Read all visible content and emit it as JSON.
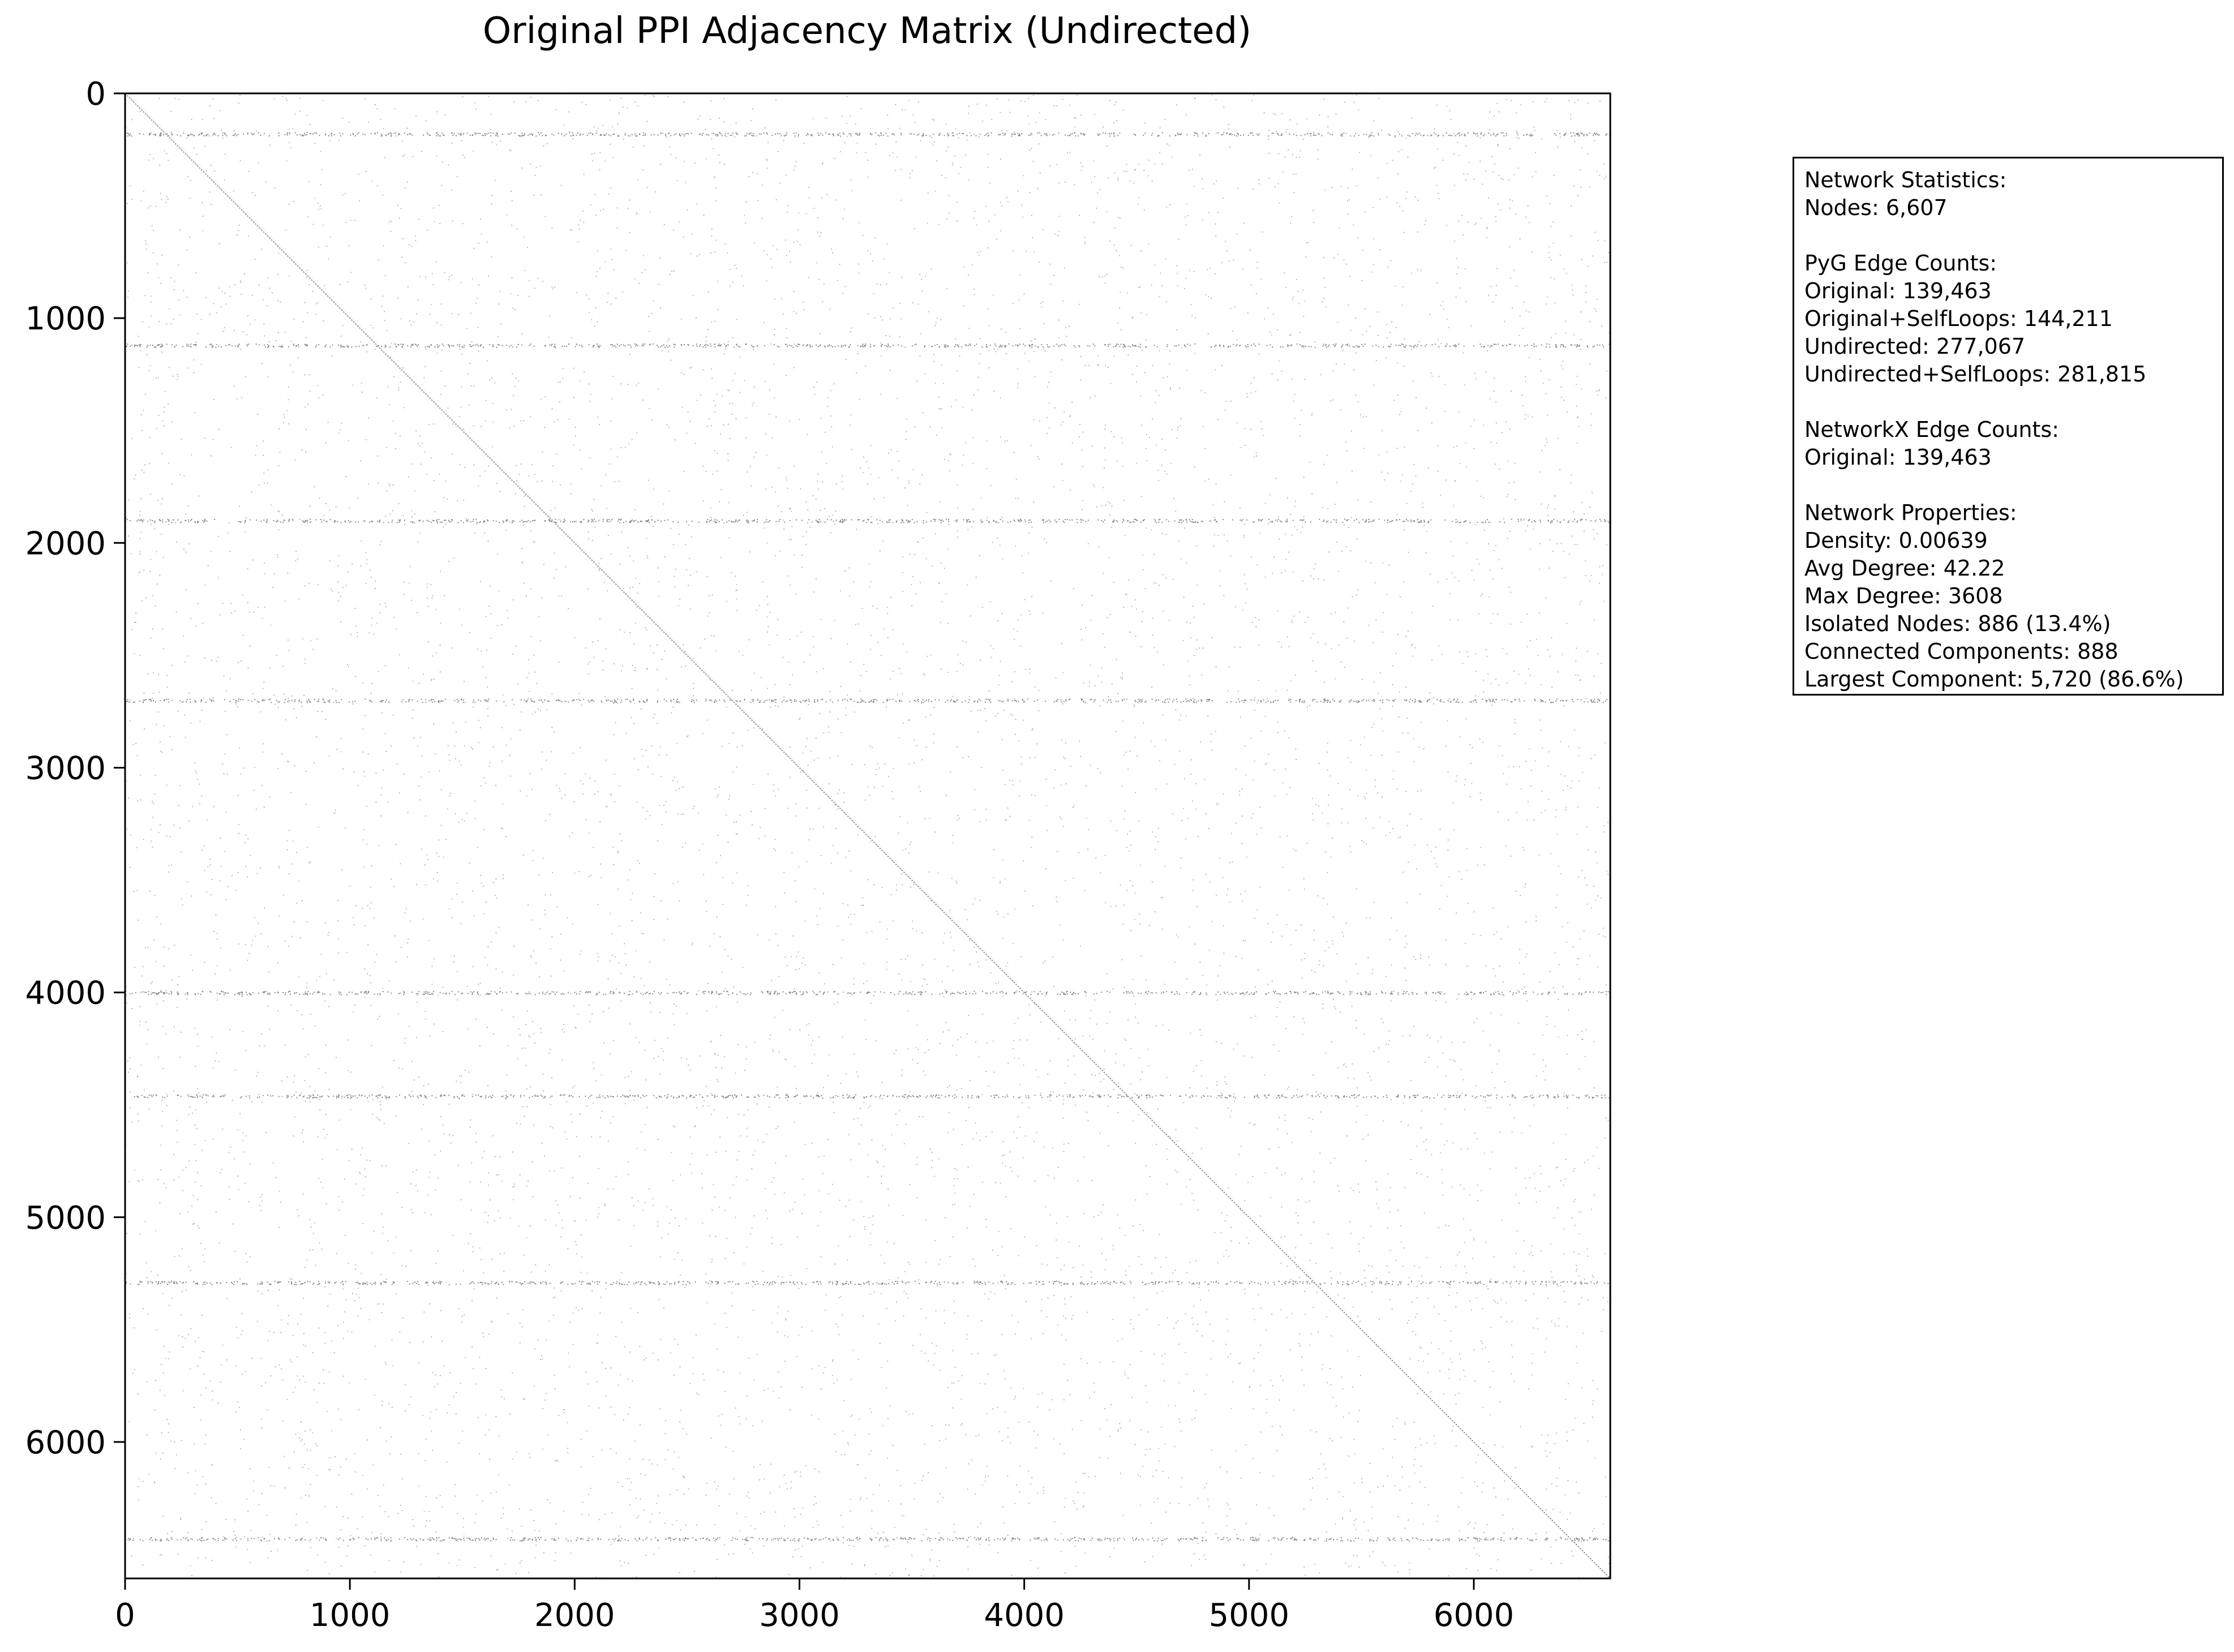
{
  "chart_data": {
    "type": "heatmap",
    "title": "Original PPI Adjacency Matrix (Undirected)",
    "xlabel": "",
    "ylabel": "",
    "xlim": [
      0,
      6607
    ],
    "ylim": [
      6607,
      0
    ],
    "xticks": [
      0,
      1000,
      2000,
      3000,
      4000,
      5000,
      6000
    ],
    "yticks": [
      0,
      1000,
      2000,
      3000,
      4000,
      5000,
      6000
    ],
    "matrix_size": 6607,
    "description_of_pattern": "",
    "dense_rows": [
      180,
      1120,
      1900,
      2700,
      4000,
      4460,
      5290,
      6430
    ],
    "colormap": "binary",
    "grid": false
  },
  "stats": {
    "lines": [
      "Network Statistics:",
      "Nodes: 6,607",
      "",
      "PyG Edge Counts:",
      "Original: 139,463",
      "Original+SelfLoops: 144,211",
      "Undirected: 277,067",
      "Undirected+SelfLoops: 281,815",
      "",
      "NetworkX Edge Counts:",
      "Original: 139,463",
      "",
      "Network Properties:",
      "Density: 0.00639",
      "Avg Degree: 42.22",
      "Max Degree: 3608",
      "Isolated Nodes: 886 (13.4%)",
      "Connected Components: 888",
      "Largest Component: 5,720 (86.6%)"
    ]
  }
}
